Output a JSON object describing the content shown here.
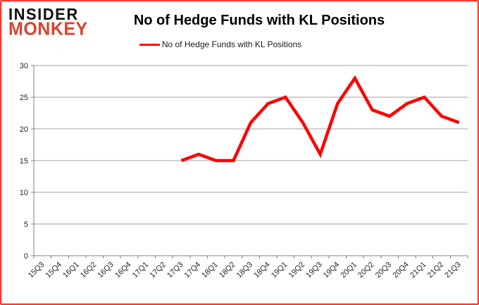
{
  "logo": {
    "line1": "INSIDER",
    "line2": "MONKEY",
    "accent_color": "#d8432f"
  },
  "title": "No of Hedge Funds with KL Positions",
  "legend": {
    "label": "No of Hedge Funds with KL Positions",
    "line_color": "#ff0000"
  },
  "chart_data": {
    "type": "line",
    "title": "No of Hedge Funds with KL Positions",
    "categories": [
      "15Q3",
      "15Q4",
      "16Q1",
      "16Q2",
      "16Q3",
      "16Q4",
      "17Q1",
      "17Q2",
      "17Q3",
      "17Q4",
      "18Q1",
      "18Q2",
      "18Q3",
      "18Q4",
      "19Q1",
      "19Q2",
      "19Q3",
      "19Q4",
      "20Q1",
      "20Q2",
      "20Q3",
      "20Q4",
      "21Q1",
      "21Q2",
      "21Q3"
    ],
    "series": [
      {
        "name": "No of Hedge Funds with KL Positions",
        "color": "#ff0000",
        "points": [
          {
            "x": "17Q3",
            "y": 15
          },
          {
            "x": "17Q4",
            "y": 16
          },
          {
            "x": "18Q1",
            "y": 15
          },
          {
            "x": "18Q2",
            "y": 15
          },
          {
            "x": "18Q3",
            "y": 21
          },
          {
            "x": "18Q4",
            "y": 24
          },
          {
            "x": "19Q1",
            "y": 25
          },
          {
            "x": "19Q2",
            "y": 21
          },
          {
            "x": "19Q3",
            "y": 16
          },
          {
            "x": "19Q4",
            "y": 24
          },
          {
            "x": "20Q1",
            "y": 28
          },
          {
            "x": "20Q2",
            "y": 23
          },
          {
            "x": "20Q3",
            "y": 22
          },
          {
            "x": "20Q4",
            "y": 24
          },
          {
            "x": "21Q1",
            "y": 25
          },
          {
            "x": "21Q2",
            "y": 22
          },
          {
            "x": "21Q3",
            "y": 21
          }
        ]
      }
    ],
    "ylim": [
      0,
      30
    ],
    "yticks": [
      0,
      5,
      10,
      15,
      20,
      25,
      30
    ],
    "grid": true,
    "legend_position": "top",
    "xlabel": "",
    "ylabel": ""
  },
  "style_colors": {
    "gridline": "#a0a0a0",
    "axis": "#808080",
    "tick_label": "#262626"
  }
}
